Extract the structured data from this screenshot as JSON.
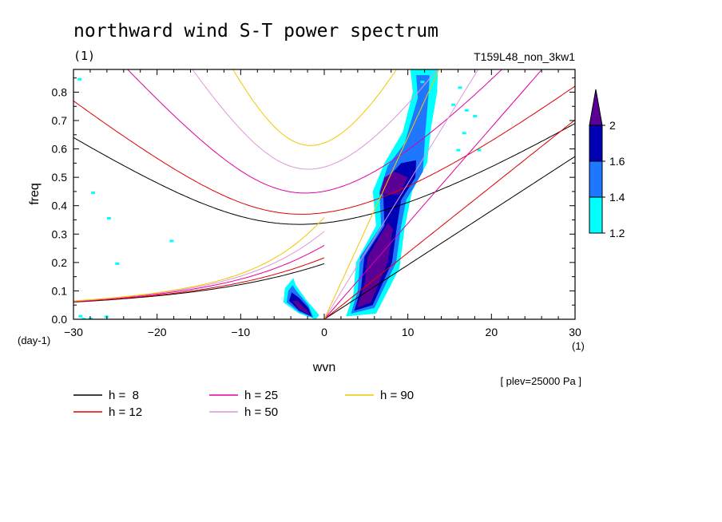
{
  "chart_data": {
    "type": "contour",
    "title": "northward wind S-T power spectrum",
    "subtitle_left": "(1)",
    "subtitle_right": "T159L48_non_3kw1",
    "xlabel": "wvn",
    "ylabel": "freq",
    "x_unit": "(1)",
    "y_unit": "(day-1)",
    "annotation": "[ plev=25000 Pa ]",
    "xlim": [
      -30,
      30
    ],
    "ylim": [
      0,
      0.88
    ],
    "x_ticks": [
      -30,
      -20,
      -10,
      0,
      10,
      20,
      30
    ],
    "x_tick_labels": [
      "-30",
      "-20",
      "-10",
      "0",
      "10",
      "20",
      "30"
    ],
    "y_ticks": [
      0,
      0.1,
      0.2,
      0.3,
      0.4,
      0.5,
      0.6,
      0.7,
      0.8
    ],
    "y_tick_labels": [
      "0.0",
      "0.1",
      "0.2",
      "0.3",
      "0.4",
      "0.5",
      "0.6",
      "0.7",
      "0.8"
    ],
    "colorbar": {
      "levels": [
        "1.2",
        "1.4",
        "1.6",
        "2"
      ],
      "colors": [
        "#00ffff",
        "#1e78ff",
        "#0000b4",
        "#5a0096"
      ]
    },
    "dispersion_curves": [
      {
        "label": "h =  8",
        "h": 8,
        "color": "#000000"
      },
      {
        "label": "h = 12",
        "h": 12,
        "color": "#e00000"
      },
      {
        "label": "h = 25",
        "h": 25,
        "color": "#e000a0"
      },
      {
        "label": "h = 50",
        "h": 50,
        "color": "#dc96dc"
      },
      {
        "label": "h = 90",
        "h": 90,
        "color": "#f0c800"
      }
    ]
  }
}
